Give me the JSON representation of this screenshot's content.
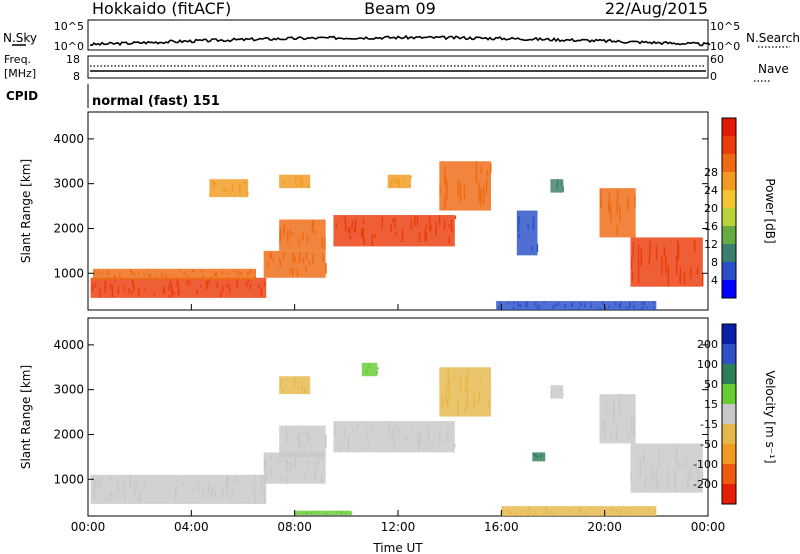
{
  "header": {
    "station": "Hokkaido (fitACF)",
    "beam": "Beam 09",
    "date": "22/Aug/2015"
  },
  "summary_panel": {
    "nsky_label": "N.Sky",
    "nsearch_label": "N.Search",
    "left_tick_top": "10^5",
    "left_tick_bottom": "10^0",
    "right_tick_top": "10^5",
    "right_tick_bottom": "10^0",
    "freq_label_1": "Freq.",
    "freq_label_2": "[MHz]",
    "freq_tick_top": "18",
    "freq_tick_bottom": "8",
    "nave_label": "Nave",
    "nave_tick_top": "60",
    "nave_tick_bottom": "0",
    "cpid_label": "CPID",
    "cpid_value": "normal (fast) 151"
  },
  "chart_data": [
    {
      "type": "heatmap",
      "name": "power",
      "ylabel": "Slant Range [km]",
      "ylim": [
        180,
        4600
      ],
      "yticks": [
        "1000",
        "2000",
        "3000",
        "4000"
      ],
      "xticks": [
        "00:00",
        "04:00",
        "08:00",
        "12:00",
        "16:00",
        "20:00",
        "00:00"
      ],
      "xlim_hours": [
        0,
        24
      ],
      "colorbar": {
        "label": "Power [dB]",
        "ticks": [
          "4",
          "8",
          "12",
          "16",
          "20",
          "24",
          "28"
        ],
        "colors": [
          "#0000ff",
          "#2a4fc8",
          "#3d7f6e",
          "#66aa44",
          "#b8d43a",
          "#f2c531",
          "#f19a20",
          "#ee6a12",
          "#ea3c0b",
          "#e01a06"
        ]
      },
      "echo_regions": [
        {
          "t0": 0.1,
          "t1": 6.9,
          "r0": 450,
          "r1": 900,
          "color": "#ea3c0b"
        },
        {
          "t0": 0.2,
          "t1": 6.5,
          "r0": 850,
          "r1": 1100,
          "color": "#ee6a12"
        },
        {
          "t0": 6.8,
          "t1": 9.2,
          "r0": 900,
          "r1": 1500,
          "color": "#ee6a12"
        },
        {
          "t0": 7.4,
          "t1": 9.2,
          "r0": 1500,
          "r1": 2200,
          "color": "#ee6a12"
        },
        {
          "t0": 9.5,
          "t1": 14.2,
          "r0": 1600,
          "r1": 2300,
          "color": "#ea3c0b"
        },
        {
          "t0": 13.6,
          "t1": 15.6,
          "r0": 2400,
          "r1": 3500,
          "color": "#ee6a12"
        },
        {
          "t0": 4.7,
          "t1": 6.2,
          "r0": 2700,
          "r1": 3100,
          "color": "#f19a20"
        },
        {
          "t0": 7.4,
          "t1": 8.6,
          "r0": 2900,
          "r1": 3200,
          "color": "#f19a20"
        },
        {
          "t0": 11.6,
          "t1": 12.5,
          "r0": 2900,
          "r1": 3200,
          "color": "#f19a20"
        },
        {
          "t0": 19.8,
          "t1": 21.2,
          "r0": 1800,
          "r1": 2900,
          "color": "#ee6a12"
        },
        {
          "t0": 21.0,
          "t1": 23.8,
          "r0": 700,
          "r1": 1800,
          "color": "#ea3c0b"
        },
        {
          "t0": 17.9,
          "t1": 18.4,
          "r0": 2800,
          "r1": 3100,
          "color": "#3d7f6e"
        },
        {
          "t0": 16.6,
          "t1": 17.4,
          "r0": 1400,
          "r1": 2400,
          "color": "#2a4fc8"
        },
        {
          "t0": 15.8,
          "t1": 22.0,
          "r0": 180,
          "r1": 380,
          "color": "#2a4fc8"
        }
      ]
    },
    {
      "type": "heatmap",
      "name": "velocity",
      "ylabel": "Slant Range [km]",
      "xlabel": "Time UT",
      "ylim": [
        180,
        4600
      ],
      "yticks": [
        "1000",
        "2000",
        "3000",
        "4000"
      ],
      "xticks": [
        "00:00",
        "04:00",
        "08:00",
        "12:00",
        "16:00",
        "20:00",
        "00:00"
      ],
      "xlim_hours": [
        0,
        24
      ],
      "colorbar": {
        "label": "Velocity [m s⁻¹]",
        "ticks": [
          "200",
          "100",
          "50",
          "15",
          "-15",
          "-50",
          "-100",
          "-200"
        ],
        "colors": [
          "#0a1fa8",
          "#3050c8",
          "#2e7d5a",
          "#66cc33",
          "#c8c8c8",
          "#e6b84a",
          "#f19a20",
          "#ee5a10",
          "#e61e06"
        ]
      },
      "echo_regions": [
        {
          "t0": 0.1,
          "t1": 6.9,
          "r0": 450,
          "r1": 1100,
          "color": "#c8c8c8"
        },
        {
          "t0": 6.8,
          "t1": 9.2,
          "r0": 900,
          "r1": 1600,
          "color": "#c8c8c8"
        },
        {
          "t0": 7.4,
          "t1": 9.2,
          "r0": 1500,
          "r1": 2200,
          "color": "#c8c8c8"
        },
        {
          "t0": 9.5,
          "t1": 14.2,
          "r0": 1600,
          "r1": 2300,
          "color": "#c8c8c8"
        },
        {
          "t0": 13.6,
          "t1": 15.6,
          "r0": 2400,
          "r1": 3500,
          "color": "#e6b84a"
        },
        {
          "t0": 7.4,
          "t1": 8.6,
          "r0": 2900,
          "r1": 3300,
          "color": "#e6b84a"
        },
        {
          "t0": 10.6,
          "t1": 11.2,
          "r0": 3300,
          "r1": 3600,
          "color": "#66cc33"
        },
        {
          "t0": 19.8,
          "t1": 21.2,
          "r0": 1800,
          "r1": 2900,
          "color": "#c8c8c8"
        },
        {
          "t0": 21.0,
          "t1": 23.8,
          "r0": 700,
          "r1": 1800,
          "color": "#c8c8c8"
        },
        {
          "t0": 17.9,
          "t1": 18.4,
          "r0": 2800,
          "r1": 3100,
          "color": "#c8c8c8"
        },
        {
          "t0": 17.2,
          "t1": 17.7,
          "r0": 1400,
          "r1": 1600,
          "color": "#2e7d5a"
        },
        {
          "t0": 16.0,
          "t1": 22.0,
          "r0": 180,
          "r1": 400,
          "color": "#e6b84a"
        },
        {
          "t0": 8.0,
          "t1": 10.2,
          "r0": 200,
          "r1": 300,
          "color": "#66cc33"
        }
      ]
    }
  ]
}
